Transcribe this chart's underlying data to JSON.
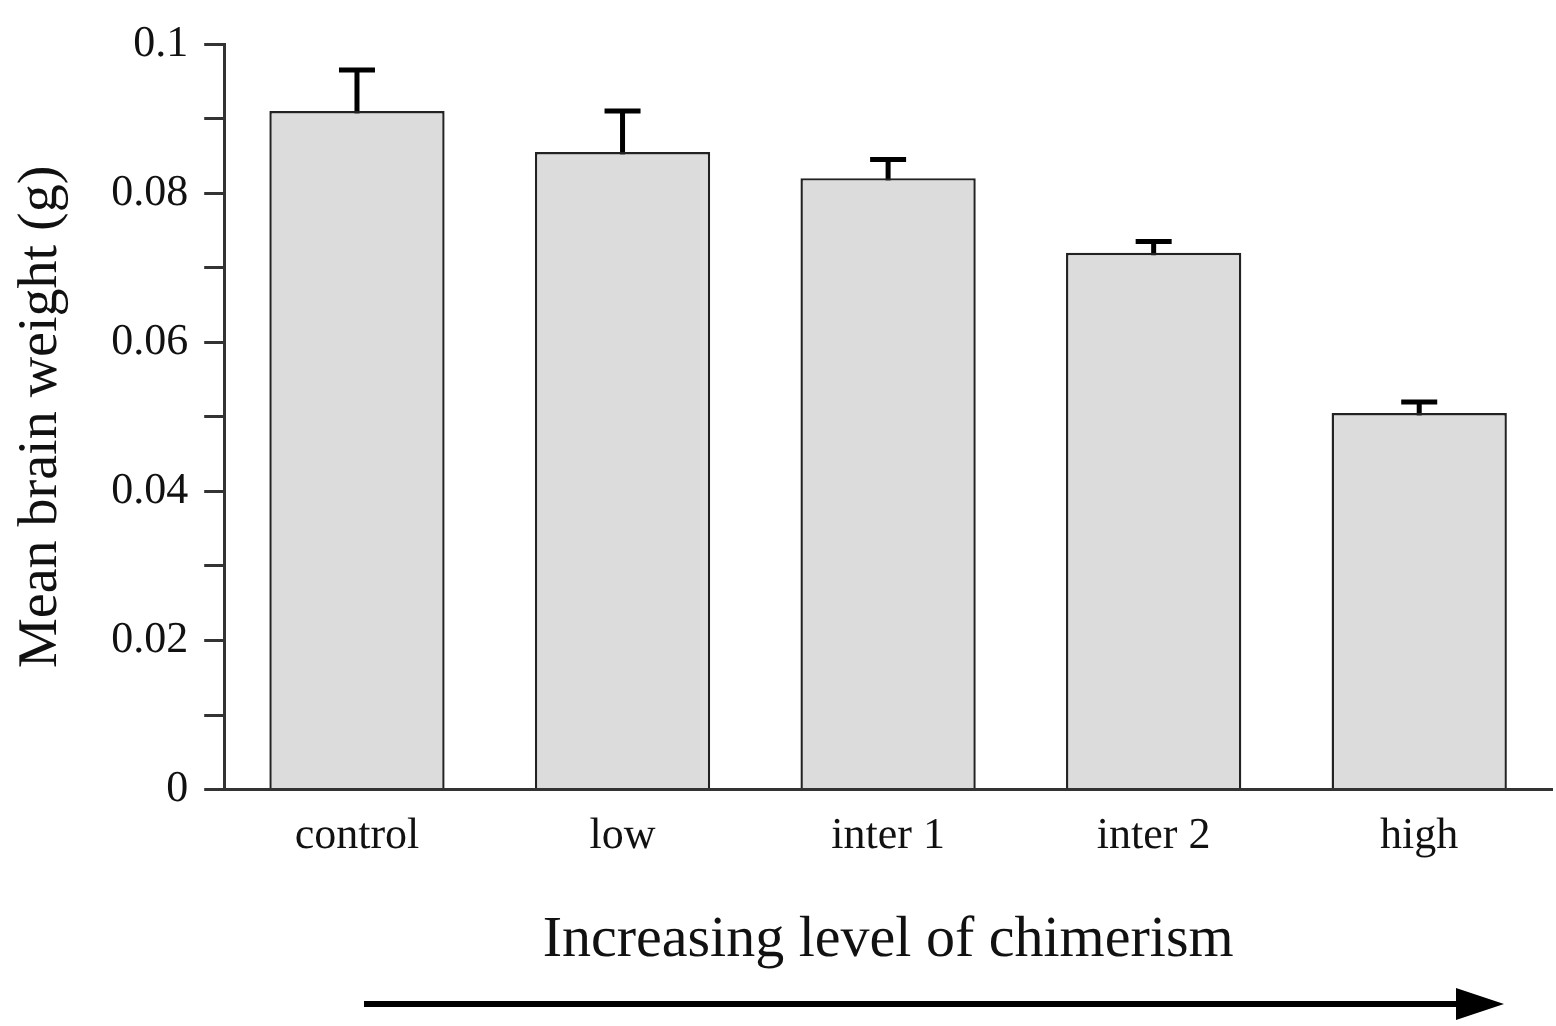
{
  "chart_data": {
    "type": "bar",
    "xlabel": "Increasing level of chimerism",
    "ylabel": "Mean brain weight (g)",
    "categories": [
      "control",
      "low",
      "inter 1",
      "inter 2",
      "high"
    ],
    "values": [
      0.091,
      0.0855,
      0.082,
      0.072,
      0.0505
    ],
    "errors": [
      0.0055,
      0.0055,
      0.0025,
      0.0015,
      0.0015
    ],
    "color": "#dcdcdc",
    "ylim": [
      0,
      0.1
    ],
    "yticks": [
      0,
      {
        "value": 0.01,
        "label": null
      },
      0.02,
      {
        "value": 0.03,
        "label": null
      },
      0.04,
      {
        "value": 0.05,
        "label": null
      },
      0.06,
      {
        "value": 0.07,
        "label": null
      },
      0.08,
      {
        "value": 0.09,
        "label": null
      },
      0.1
    ],
    "grid": false,
    "legend": false
  }
}
